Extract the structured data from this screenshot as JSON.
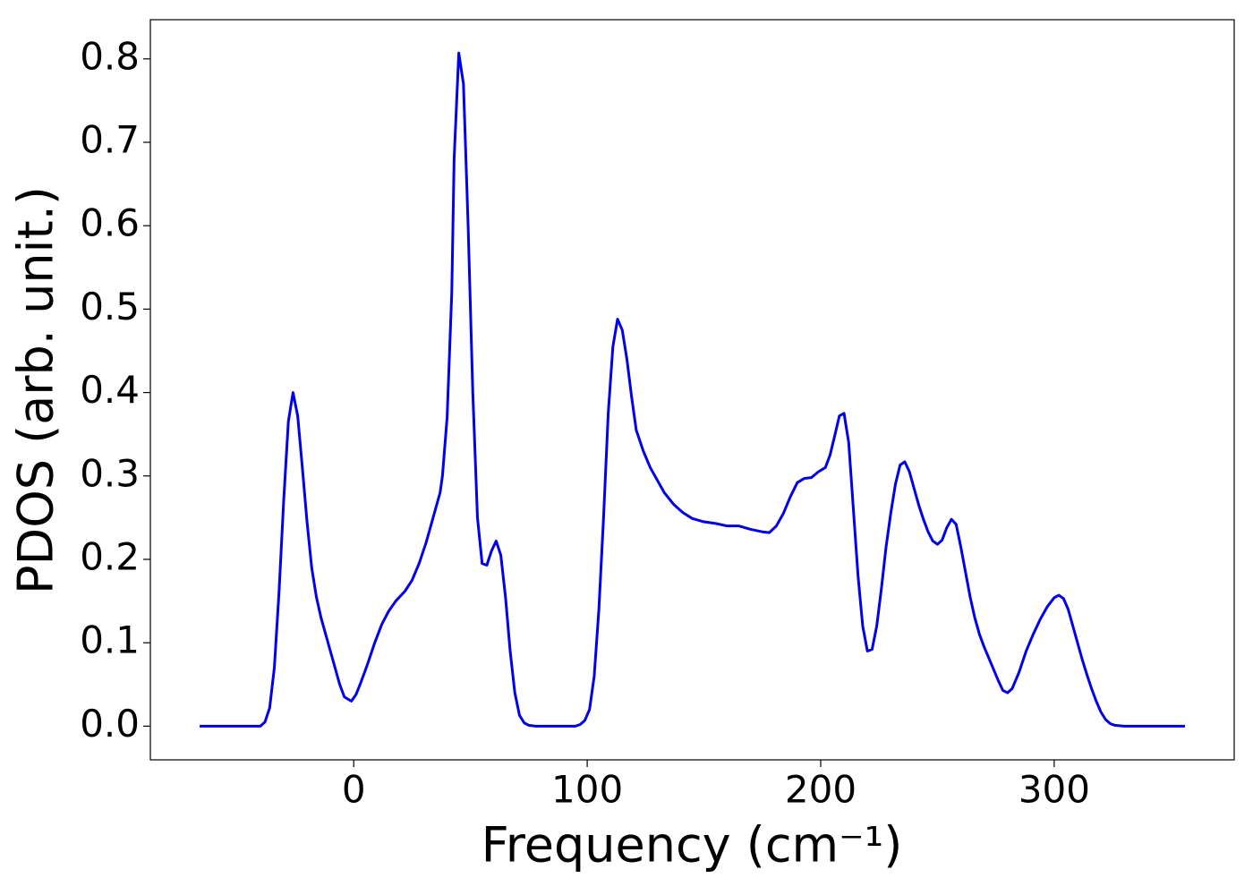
{
  "chart_data": {
    "type": "line",
    "xlabel": "Frequency (cm⁻¹)",
    "ylabel": "PDOS (arb. unit.)",
    "xlim": [
      -87.1,
      377.1
    ],
    "ylim": [
      -0.0404,
      0.847
    ],
    "xticks": [
      0,
      100,
      200,
      300
    ],
    "yticks": [
      {
        "value": 0,
        "label": "0.0"
      },
      0.1,
      0.2,
      0.3,
      0.4,
      0.5,
      0.6,
      0.7,
      0.8
    ],
    "series": [
      {
        "color": "#0000ee",
        "x": [
          -66,
          -40,
          -38,
          -36,
          -34,
          -32,
          -30,
          -28,
          -26,
          -24,
          -22,
          -20,
          -18,
          -16,
          -14,
          -12,
          -10,
          -8,
          -6,
          -4,
          -1,
          1,
          3,
          6,
          9,
          12,
          15,
          18,
          22,
          25,
          28,
          31,
          34,
          37,
          38,
          40,
          42,
          43,
          45,
          47,
          49,
          51,
          53,
          55,
          57,
          59,
          61,
          63,
          65,
          67,
          69,
          71,
          73,
          75,
          78,
          95,
          97,
          99,
          101,
          103,
          105,
          107,
          109,
          111,
          113,
          115,
          117,
          119,
          121,
          124,
          127,
          130,
          133,
          137,
          141,
          145,
          150,
          155,
          160,
          165,
          170,
          175,
          178,
          181,
          184,
          187,
          190,
          193,
          196,
          199,
          202,
          204,
          206,
          208,
          210,
          212,
          214,
          216,
          218,
          220,
          222,
          224,
          226,
          228,
          230,
          232,
          234,
          236,
          238,
          240,
          242,
          244,
          246,
          248,
          250,
          252,
          254,
          256,
          258,
          260,
          262,
          264,
          266,
          268,
          270,
          273,
          276,
          278,
          280,
          282,
          285,
          288,
          291,
          294,
          297,
          300,
          302,
          304,
          306,
          308,
          310,
          312,
          314,
          316,
          318,
          320,
          322,
          324,
          326,
          330,
          356
        ],
        "values": [
          0,
          0,
          0.005,
          0.022,
          0.07,
          0.16,
          0.27,
          0.365,
          0.4,
          0.372,
          0.31,
          0.245,
          0.19,
          0.155,
          0.13,
          0.11,
          0.09,
          0.07,
          0.05,
          0.035,
          0.03,
          0.038,
          0.052,
          0.075,
          0.1,
          0.122,
          0.138,
          0.15,
          0.162,
          0.175,
          0.195,
          0.22,
          0.25,
          0.28,
          0.3,
          0.37,
          0.52,
          0.68,
          0.807,
          0.77,
          0.6,
          0.4,
          0.25,
          0.195,
          0.193,
          0.21,
          0.222,
          0.205,
          0.155,
          0.09,
          0.04,
          0.013,
          0.004,
          0.001,
          0,
          0,
          0.002,
          0.007,
          0.02,
          0.06,
          0.14,
          0.25,
          0.375,
          0.455,
          0.488,
          0.475,
          0.44,
          0.395,
          0.355,
          0.33,
          0.31,
          0.295,
          0.28,
          0.266,
          0.256,
          0.249,
          0.245,
          0.243,
          0.24,
          0.24,
          0.236,
          0.233,
          0.232,
          0.24,
          0.255,
          0.275,
          0.292,
          0.297,
          0.298,
          0.305,
          0.31,
          0.325,
          0.348,
          0.372,
          0.375,
          0.34,
          0.26,
          0.18,
          0.12,
          0.09,
          0.092,
          0.12,
          0.165,
          0.215,
          0.255,
          0.29,
          0.313,
          0.317,
          0.305,
          0.285,
          0.265,
          0.248,
          0.233,
          0.222,
          0.218,
          0.223,
          0.238,
          0.248,
          0.242,
          0.215,
          0.185,
          0.155,
          0.13,
          0.11,
          0.095,
          0.075,
          0.055,
          0.043,
          0.04,
          0.045,
          0.065,
          0.09,
          0.11,
          0.128,
          0.143,
          0.154,
          0.157,
          0.153,
          0.14,
          0.12,
          0.1,
          0.08,
          0.062,
          0.045,
          0.03,
          0.017,
          0.008,
          0.003,
          0.001,
          0,
          0
        ]
      }
    ]
  }
}
